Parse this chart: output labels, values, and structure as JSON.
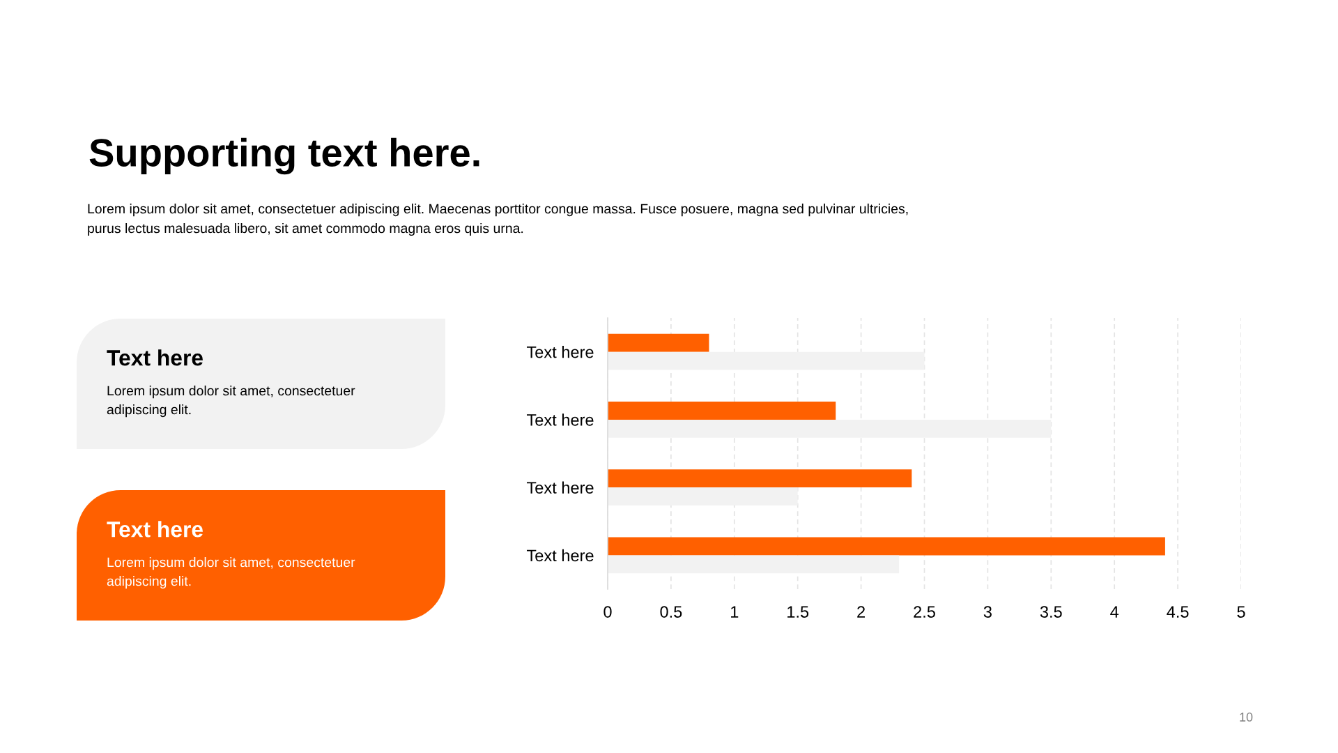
{
  "chart_data": [
    {
      "type": "other",
      "title": "Supporting text here.",
      "subtitle": "Lorem ipsum dolor sit amet, consectetuer adipiscing elit. Maecenas porttitor congue massa. Fusce posuere, magna sed pulvinar ultricies, purus lectus malesuada libero, sit amet commodo magna eros quis urna.",
      "annotations": [
        "10"
      ]
    },
    {
      "type": "other",
      "title": "Text here",
      "subtitle": "Lorem ipsum dolor sit amet, consectetuer adipiscing elit.",
      "color": "#f2f2f2"
    },
    {
      "type": "other",
      "title": "Text here",
      "subtitle": "Lorem ipsum dolor sit amet, consectetuer adipiscing elit.",
      "color": "#ff6000"
    },
    {
      "type": "bar",
      "orientation": "horizontal",
      "categories": [
        "Text here",
        "Text here",
        "Text here",
        "Text here"
      ],
      "series": [
        {
          "color": "#ff6000",
          "values": [
            0.8,
            1.8,
            2.4,
            4.4
          ]
        },
        {
          "color": "#f2f2f2",
          "values": [
            2.5,
            3.5,
            1.5,
            2.3
          ]
        }
      ],
      "xlim": [
        0,
        5
      ],
      "xticks": [
        0,
        0.5,
        1,
        1.5,
        2,
        2.5,
        3,
        3.5,
        4,
        4.5,
        5
      ],
      "grid": "x"
    }
  ]
}
